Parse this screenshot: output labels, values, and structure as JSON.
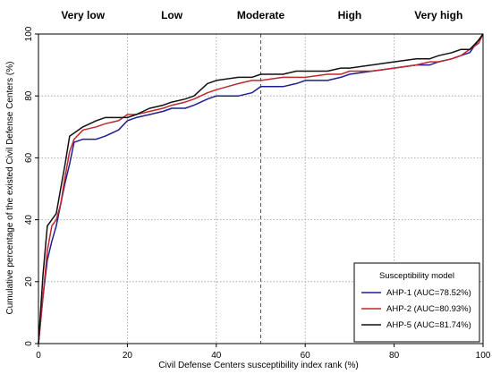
{
  "chart_data": {
    "type": "line",
    "title": "",
    "xlabel": "Civil Defense Centers susceptibility index rank (%)",
    "ylabel": "Cumulative percentage of the existed Civil Defense Centers (%)",
    "xlim": [
      0,
      100
    ],
    "ylim": [
      0,
      100
    ],
    "x_ticks": [
      "0",
      "20",
      "40",
      "60",
      "80",
      "100"
    ],
    "y_ticks": [
      "0",
      "20",
      "40",
      "60",
      "80",
      "100"
    ],
    "grid": true,
    "zones": [
      "Very low",
      "Low",
      "Moderate",
      "High",
      "Very high"
    ],
    "divider_x": 50,
    "legend": {
      "title": "Susceptibility model",
      "placement": "bottom-right"
    },
    "series": [
      {
        "name": "AHP-1 (AUC=78.52%)",
        "color": "#1f1f8f",
        "x": [
          0,
          1,
          2,
          3,
          4,
          5,
          6,
          7,
          8,
          10,
          13,
          15,
          18,
          20,
          22,
          25,
          28,
          30,
          33,
          35,
          38,
          40,
          45,
          48,
          50,
          55,
          58,
          60,
          65,
          68,
          70,
          75,
          80,
          85,
          88,
          90,
          93,
          95,
          97,
          99,
          100
        ],
        "y": [
          0,
          15,
          27,
          33,
          38,
          45,
          52,
          58,
          65,
          66,
          66,
          67,
          69,
          72,
          73,
          74,
          75,
          76,
          76,
          77,
          79,
          80,
          80,
          81,
          83,
          83,
          84,
          85,
          85,
          86,
          87,
          88,
          89,
          90,
          90,
          91,
          92,
          93,
          94,
          98,
          100
        ]
      },
      {
        "name": "AHP-2 (AUC=80.93%)",
        "color": "#c0282d",
        "x": [
          0,
          1,
          2,
          3,
          4,
          5,
          6,
          7,
          8,
          10,
          13,
          15,
          18,
          20,
          22,
          25,
          28,
          30,
          33,
          35,
          38,
          40,
          45,
          48,
          50,
          55,
          58,
          60,
          65,
          68,
          70,
          75,
          80,
          85,
          88,
          90,
          93,
          95,
          97,
          99,
          100
        ],
        "y": [
          0,
          15,
          30,
          38,
          40,
          45,
          54,
          62,
          66,
          69,
          70,
          71,
          72,
          74,
          74,
          75,
          76,
          77,
          78,
          79,
          81,
          82,
          84,
          85,
          85,
          86,
          86,
          86,
          87,
          87,
          88,
          88,
          89,
          90,
          91,
          91,
          92,
          93,
          95,
          97,
          100
        ]
      },
      {
        "name": "AHP-5 (AUC=81.74%)",
        "color": "#111111",
        "x": [
          0,
          1,
          2,
          3,
          4,
          5,
          6,
          7,
          8,
          10,
          13,
          15,
          18,
          20,
          22,
          25,
          28,
          30,
          33,
          35,
          38,
          40,
          45,
          48,
          50,
          55,
          58,
          60,
          65,
          68,
          70,
          75,
          80,
          85,
          88,
          90,
          93,
          95,
          97,
          99,
          100
        ],
        "y": [
          0,
          22,
          38,
          40,
          42,
          50,
          58,
          67,
          68,
          70,
          72,
          73,
          73,
          73,
          74,
          76,
          77,
          78,
          79,
          80,
          84,
          85,
          86,
          86,
          87,
          87,
          88,
          88,
          88,
          89,
          89,
          90,
          91,
          92,
          92,
          93,
          94,
          95,
          95,
          98,
          100
        ]
      }
    ]
  }
}
